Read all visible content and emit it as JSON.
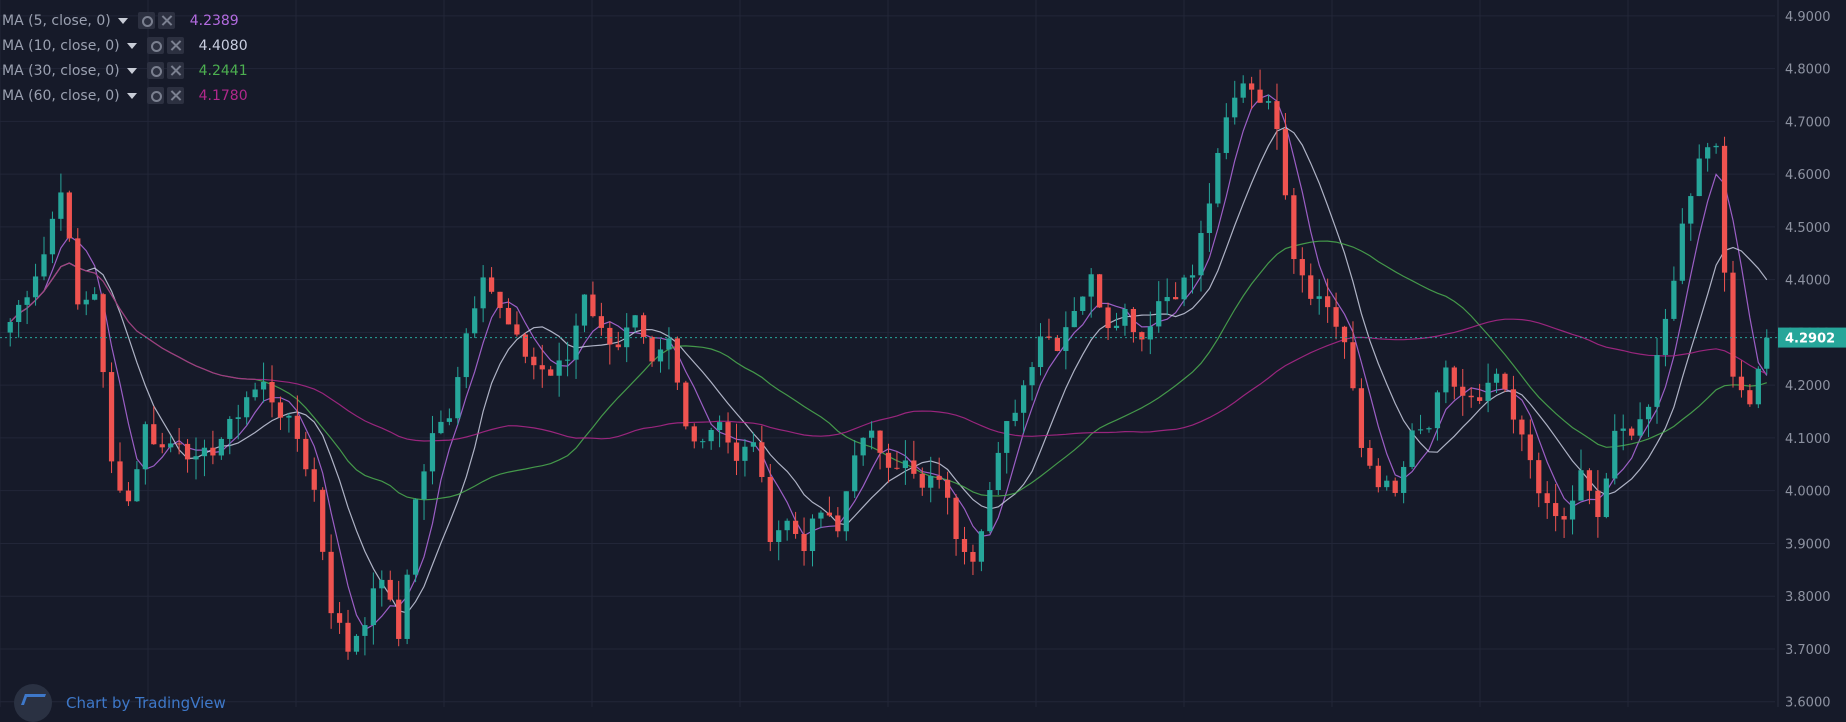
{
  "colors": {
    "background": "#161a29",
    "grid": "#222638",
    "axis_text": "#8d92a1",
    "up": "#26a69a",
    "down": "#ef5350",
    "price_line": "#26a69a",
    "ma5": "#b36be0",
    "ma10": "#c9cee0",
    "ma30": "#4caf50",
    "ma60": "#b0288c"
  },
  "legend": [
    {
      "name": "MA (5, close, 0)",
      "value": "4.2389",
      "color": "#b36be0"
    },
    {
      "name": "MA (10, close, 0)",
      "value": "4.4080",
      "color": "#c9cee0"
    },
    {
      "name": "MA (30, close, 0)",
      "value": "4.2441",
      "color": "#4caf50"
    },
    {
      "name": "MA (60, close, 0)",
      "value": "4.1780",
      "color": "#b0288c"
    }
  ],
  "watermark": {
    "text": "Chart by TradingView"
  },
  "current_price": {
    "label": "4.2902",
    "value": 4.2902
  },
  "chart_data": {
    "type": "candlestick",
    "y_range": [
      3.59,
      4.93
    ],
    "y_ticks": [
      "4.9000",
      "4.8000",
      "4.7000",
      "4.6000",
      "4.5000",
      "4.4000",
      "4.3000",
      "4.2000",
      "4.1000",
      "4.0000",
      "3.9000",
      "3.8000",
      "3.7000",
      "3.6000"
    ],
    "close_path": [
      4.32,
      4.38,
      4.45,
      4.58,
      4.35,
      4.38,
      4.05,
      3.98,
      4.12,
      4.08,
      4.1,
      4.05,
      4.08,
      4.12,
      4.18,
      4.2,
      4.15,
      4.1,
      4.0,
      3.78,
      3.7,
      3.76,
      3.84,
      3.72,
      3.98,
      4.1,
      4.15,
      4.3,
      4.42,
      4.34,
      4.28,
      4.24,
      4.22,
      4.25,
      4.38,
      4.3,
      4.28,
      4.32,
      4.23,
      4.28,
      4.12,
      4.1,
      4.14,
      4.05,
      4.1,
      3.92,
      3.94,
      3.9,
      3.96,
      3.92,
      4.08,
      4.1,
      4.06,
      4.05,
      4.0,
      4.03,
      3.92,
      3.88,
      4.0,
      4.12,
      4.2,
      4.3,
      4.28,
      4.35,
      4.4,
      4.32,
      4.34,
      4.29,
      4.36,
      4.38,
      4.41,
      4.55,
      4.7,
      4.78,
      4.75,
      4.7,
      4.45,
      4.38,
      4.35,
      4.28,
      4.08,
      4.02,
      3.99,
      4.1,
      4.12,
      4.22,
      4.18,
      4.16,
      4.22,
      4.13,
      4.06,
      3.96,
      3.94,
      4.03,
      3.95,
      4.1,
      4.12,
      4.16,
      4.32,
      4.5,
      4.64,
      4.66,
      4.2,
      4.18,
      4.29
    ]
  }
}
